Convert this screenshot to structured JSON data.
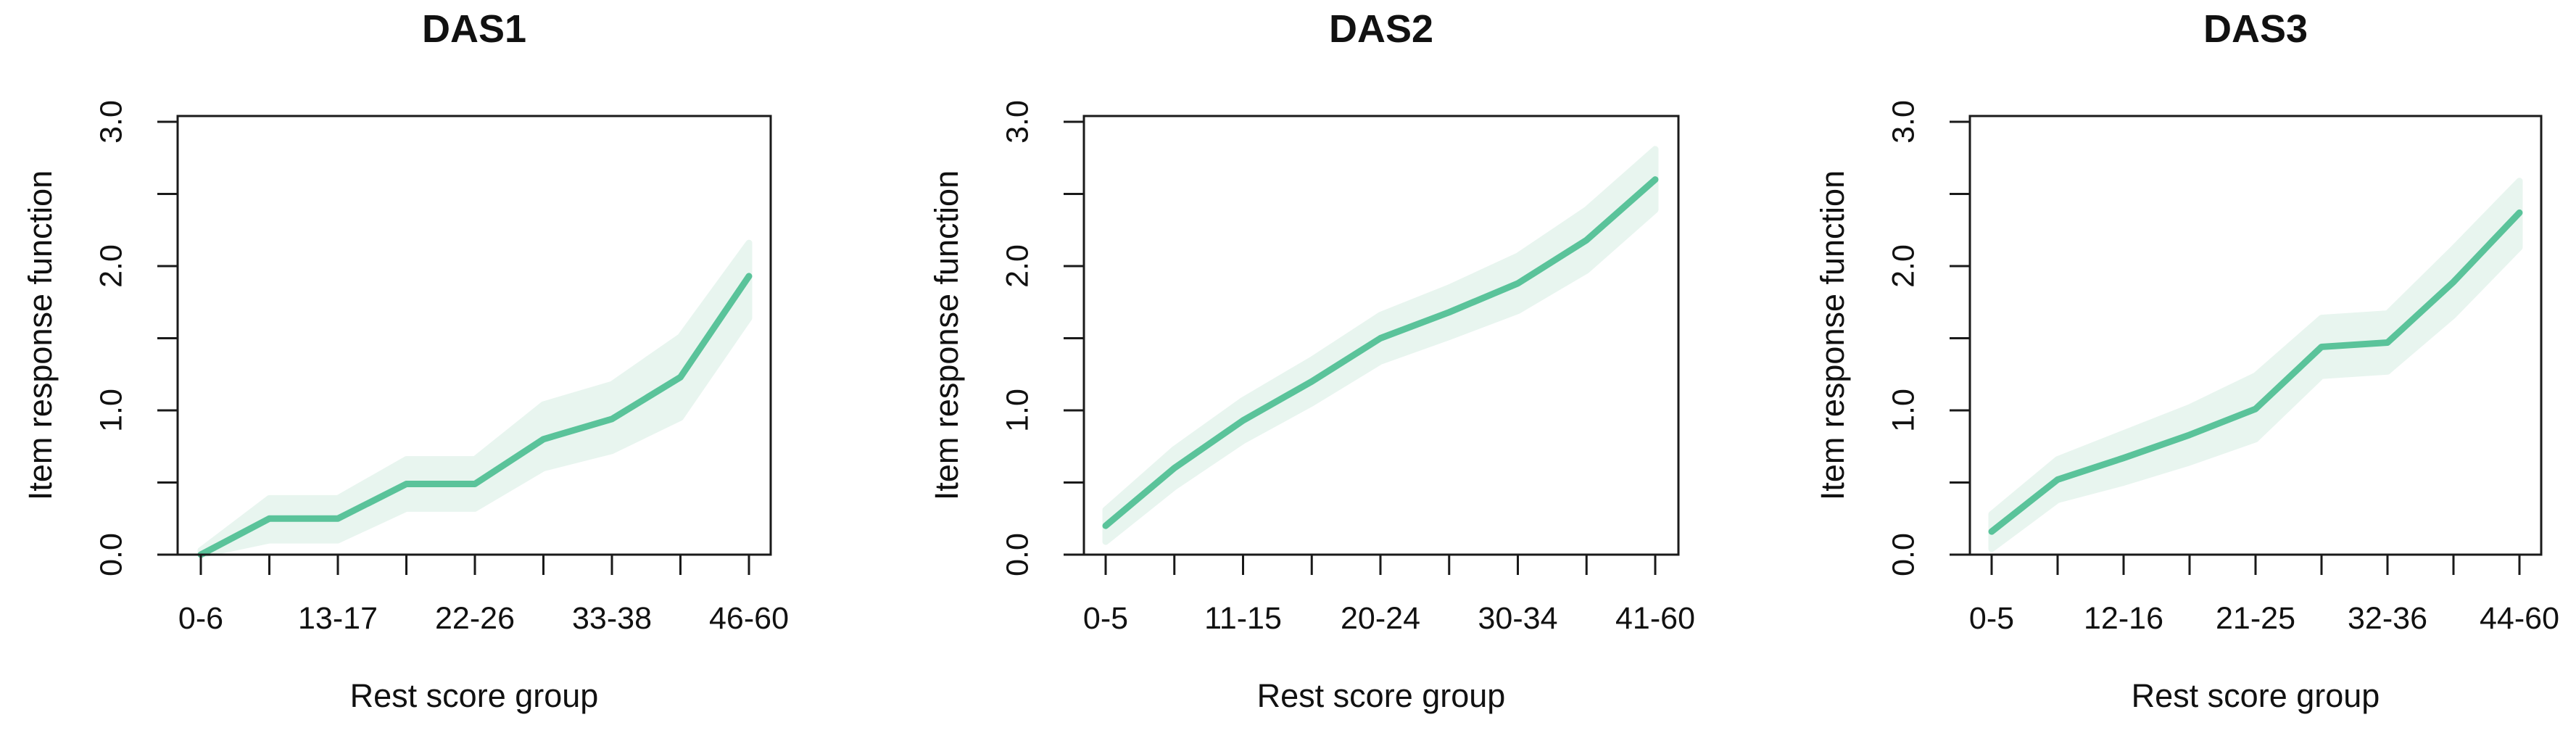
{
  "style": {
    "background": "#ffffff",
    "line_color": "#5ac39a",
    "band_color": "#e8f5ef",
    "axis_color": "#1a1a1a",
    "text_color": "#111111"
  },
  "chart_data": [
    {
      "type": "line",
      "title": "DAS1",
      "xlabel": "Rest score group",
      "ylabel": "Item response function",
      "ylim": [
        0.0,
        3.0
      ],
      "ytick_step": 0.5,
      "ytick_labeled_values": [
        0.0,
        1.0,
        2.0,
        3.0
      ],
      "ytick_labels": [
        "0.0",
        "1.0",
        "2.0",
        "3.0"
      ],
      "x": [
        1,
        2,
        3,
        4,
        5,
        6,
        7,
        8,
        9
      ],
      "xtick_labels": [
        "0-6",
        "",
        "13-17",
        "",
        "22-26",
        "",
        "33-38",
        "",
        "46-60"
      ],
      "series": [
        {
          "name": "item-response-function",
          "values": [
            0.0,
            0.25,
            0.25,
            0.49,
            0.49,
            0.8,
            0.94,
            1.23,
            1.93
          ],
          "band_lower": [
            0.0,
            0.1,
            0.1,
            0.32,
            0.32,
            0.6,
            0.72,
            0.95,
            1.64
          ],
          "band_upper": [
            0.03,
            0.39,
            0.39,
            0.66,
            0.66,
            1.04,
            1.18,
            1.51,
            2.16
          ]
        }
      ],
      "legend": "none",
      "grid": false
    },
    {
      "type": "line",
      "title": "DAS2",
      "xlabel": "Rest score group",
      "ylabel": "Item response function",
      "ylim": [
        0.0,
        3.0
      ],
      "ytick_step": 0.5,
      "ytick_labeled_values": [
        0.0,
        1.0,
        2.0,
        3.0
      ],
      "ytick_labels": [
        "0.0",
        "1.0",
        "2.0",
        "3.0"
      ],
      "x": [
        1,
        2,
        3,
        4,
        5,
        6,
        7,
        8,
        9
      ],
      "xtick_labels": [
        "0-5",
        "",
        "11-15",
        "",
        "20-24",
        "",
        "30-34",
        "",
        "41-60"
      ],
      "series": [
        {
          "name": "item-response-function",
          "values": [
            0.2,
            0.6,
            0.93,
            1.2,
            1.5,
            1.68,
            1.88,
            2.18,
            2.6
          ],
          "band_lower": [
            0.09,
            0.47,
            0.79,
            1.05,
            1.34,
            1.51,
            1.69,
            1.97,
            2.39
          ],
          "band_upper": [
            0.31,
            0.73,
            1.07,
            1.35,
            1.66,
            1.85,
            2.07,
            2.39,
            2.81
          ]
        }
      ],
      "legend": "none",
      "grid": false
    },
    {
      "type": "line",
      "title": "DAS3",
      "xlabel": "Rest score group",
      "ylabel": "Item response function",
      "ylim": [
        0.0,
        3.0
      ],
      "ytick_step": 0.5,
      "ytick_labeled_values": [
        0.0,
        1.0,
        2.0,
        3.0
      ],
      "ytick_labels": [
        "0.0",
        "1.0",
        "2.0",
        "3.0"
      ],
      "x": [
        1,
        2,
        3,
        4,
        5,
        6,
        7,
        8,
        9
      ],
      "xtick_labels": [
        "0-5",
        "",
        "12-16",
        "",
        "21-25",
        "",
        "32-36",
        "",
        "44-60"
      ],
      "series": [
        {
          "name": "item-response-function",
          "values": [
            0.16,
            0.52,
            0.67,
            0.83,
            1.01,
            1.44,
            1.47,
            1.89,
            2.37
          ],
          "band_lower": [
            0.04,
            0.38,
            0.5,
            0.64,
            0.8,
            1.24,
            1.27,
            1.66,
            2.13
          ],
          "band_upper": [
            0.28,
            0.66,
            0.84,
            1.02,
            1.24,
            1.64,
            1.67,
            2.12,
            2.59
          ]
        }
      ],
      "legend": "none",
      "grid": false
    }
  ]
}
